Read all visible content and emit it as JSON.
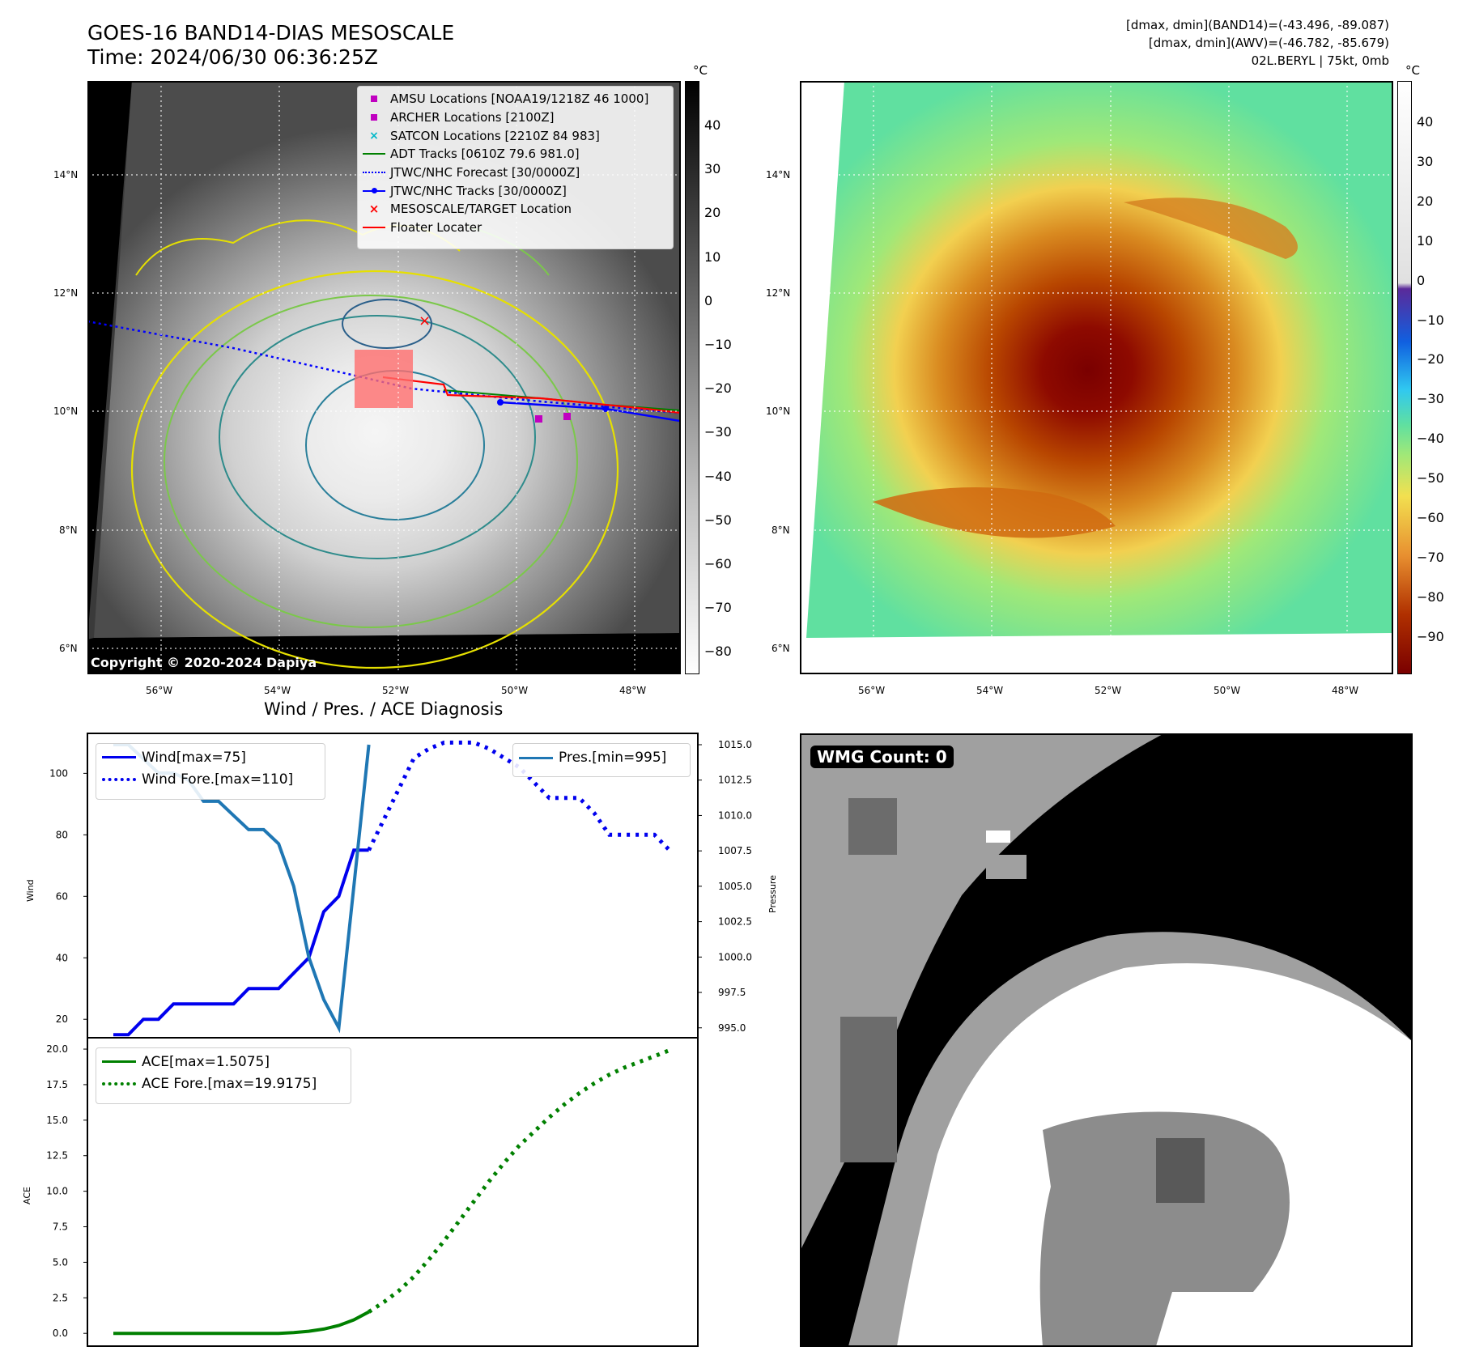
{
  "header": {
    "title_line1": "GOES-16 BAND14-DIAS MESOSCALE",
    "title_line2": "Time: 2024/06/30 06:36:25Z",
    "info_line1": "[dmax, dmin](BAND14)=(-43.496, -89.087)",
    "info_line2": "[dmax, dmin](AWV)=(-46.782, -85.679)",
    "info_line3": "02L.BERYL | 75kt, 0mb"
  },
  "map_axes": {
    "lon_labels": [
      "56°W",
      "54°W",
      "52°W",
      "50°W",
      "48°W"
    ],
    "lat_labels": [
      "14°N",
      "12°N",
      "10°N",
      "8°N",
      "6°N"
    ]
  },
  "ir_colorbar": {
    "unit": "°C",
    "ticks": [
      "40",
      "30",
      "20",
      "10",
      "0",
      "−10",
      "−20",
      "−30",
      "−40",
      "−50",
      "−60",
      "−70",
      "−80"
    ]
  },
  "awv_colorbar": {
    "unit": "°C",
    "ticks": [
      "40",
      "30",
      "20",
      "10",
      "0",
      "−10",
      "−20",
      "−30",
      "−40",
      "−50",
      "−60",
      "−70",
      "−80",
      "−90"
    ]
  },
  "map_legend": {
    "items": [
      {
        "label": "AMSU Locations [NOAA19/1218Z 46 1000]",
        "symbol": "square",
        "color": "#c000c0"
      },
      {
        "label": "ARCHER Locations [2100Z]",
        "symbol": "square",
        "color": "#c000c0"
      },
      {
        "label": "SATCON Locations [2210Z 84 983]",
        "symbol": "x",
        "color": "#00b8c8"
      },
      {
        "label": "ADT Tracks [0610Z 79.6 981.0]",
        "symbol": "line",
        "color": "#008000"
      },
      {
        "label": "JTWC/NHC Forecast [30/0000Z]",
        "symbol": "dotted",
        "color": "#0000ff"
      },
      {
        "label": "JTWC/NHC Tracks [30/0000Z]",
        "symbol": "line-dot",
        "color": "#0000ff"
      },
      {
        "label": "MESOSCALE/TARGET Location",
        "symbol": "x",
        "color": "#ff0000"
      },
      {
        "label": "Floater Locater",
        "symbol": "line",
        "color": "#ff0000"
      }
    ]
  },
  "copyright": "Copyright © 2020-2024 Dapiya",
  "wmg_badge": "WMG Count: 0",
  "chart_data": [
    {
      "type": "line",
      "title": "Wind / Pres. / ACE Diagnosis",
      "ylabel": "Wind",
      "y2label": "Pressure",
      "ylim": [
        14,
        113
      ],
      "y2lim": [
        994.3,
        1015.8
      ],
      "yticks": [
        "20",
        "40",
        "60",
        "80",
        "100"
      ],
      "y2ticks": [
        "995.0",
        "997.5",
        "1000.0",
        "1002.5",
        "1005.0",
        "1007.5",
        "1010.0",
        "1012.5",
        "1015.0"
      ],
      "x_index_range": [
        0,
        37
      ],
      "series": [
        {
          "name": "Wind[max=75]",
          "axis": "left",
          "style": "solid",
          "color": "#0000ee",
          "x": [
            0,
            1,
            2,
            3,
            4,
            5,
            6,
            7,
            8,
            9,
            10,
            11,
            12,
            13,
            14,
            15,
            16,
            17
          ],
          "values": [
            15,
            15,
            20,
            20,
            25,
            25,
            25,
            25,
            25,
            30,
            30,
            30,
            35,
            40,
            55,
            60,
            75,
            75
          ]
        },
        {
          "name": "Wind Fore.[max=110]",
          "axis": "left",
          "style": "dotted",
          "color": "#0000ee",
          "x": [
            17,
            18,
            19,
            20,
            21,
            22,
            23,
            24,
            25,
            26,
            27,
            28,
            29,
            30,
            31,
            32,
            33,
            34,
            35,
            36,
            37
          ],
          "values": [
            75,
            85,
            95,
            105,
            108,
            110,
            110,
            110,
            108,
            105,
            102,
            97,
            92,
            92,
            92,
            87,
            80,
            80,
            80,
            80,
            75
          ]
        },
        {
          "name": "Pres.[min=995]",
          "axis": "right",
          "style": "solid",
          "color": "#1f77b4",
          "x": [
            0,
            1,
            2,
            3,
            4,
            5,
            6,
            7,
            8,
            9,
            10,
            11,
            12,
            13,
            14,
            15,
            16,
            17
          ],
          "values": [
            1015,
            1015,
            1014,
            1013,
            1013,
            1012.5,
            1011,
            1011,
            1010,
            1009,
            1009,
            1008,
            1005,
            1000,
            997,
            995,
            1005,
            1015
          ]
        }
      ]
    },
    {
      "type": "line",
      "ylabel": "ACE",
      "ylim": [
        -0.9,
        20.8
      ],
      "yticks": [
        "0.0",
        "2.5",
        "5.0",
        "7.5",
        "10.0",
        "12.5",
        "15.0",
        "17.5",
        "20.0"
      ],
      "x_index_range": [
        0,
        37
      ],
      "series": [
        {
          "name": "ACE[max=1.5075]",
          "style": "solid",
          "color": "#008000",
          "x": [
            0,
            1,
            2,
            3,
            4,
            5,
            6,
            7,
            8,
            9,
            10,
            11,
            12,
            13,
            14,
            15,
            16,
            17
          ],
          "values": [
            0,
            0,
            0,
            0,
            0,
            0,
            0,
            0,
            0,
            0,
            0,
            0,
            0.05,
            0.15,
            0.3,
            0.55,
            0.95,
            1.5075
          ]
        },
        {
          "name": "ACE Fore.[max=19.9175]",
          "style": "dotted",
          "color": "#008000",
          "x": [
            17,
            18,
            19,
            20,
            21,
            22,
            23,
            24,
            25,
            26,
            27,
            28,
            29,
            30,
            31,
            32,
            33,
            34,
            35,
            36,
            37
          ],
          "values": [
            1.5075,
            2.2,
            3.0,
            4.0,
            5.2,
            6.5,
            7.9,
            9.3,
            10.7,
            12.0,
            13.2,
            14.2,
            15.2,
            16.1,
            16.9,
            17.6,
            18.2,
            18.7,
            19.1,
            19.5,
            19.9175
          ]
        }
      ]
    }
  ]
}
